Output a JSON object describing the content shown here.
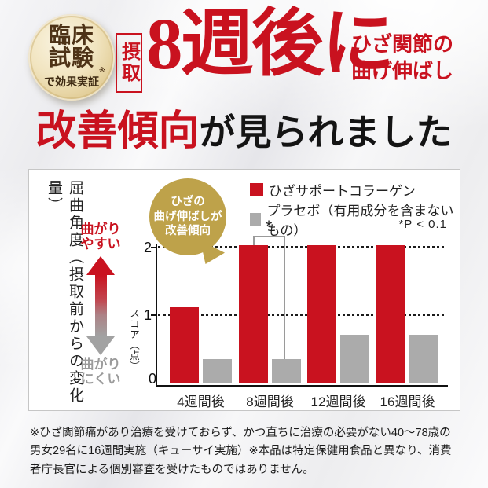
{
  "header": {
    "badge": {
      "title": "臨床試験",
      "note": "※",
      "subtitle": "で効果実証"
    },
    "intake_label": "摂取",
    "headline_large": "8週後に",
    "headline_side_line1": "ひざ関節の",
    "headline_side_line2": "曲げ伸ばし",
    "headline2_red": "改善傾向",
    "headline2_black": "が見られました"
  },
  "chart": {
    "y_axis_title": "屈曲角度（摂取前からの変化量）",
    "bend_easy": "曲がりやすい",
    "bend_hard": "曲がりにくい",
    "score_axis_label": "スコア（点）",
    "y_ticks": [
      "2",
      "1",
      "0"
    ],
    "callout": {
      "line1": "ひざの",
      "line2": "曲げ伸ばしが",
      "line3": "改善傾向"
    },
    "legend": [
      {
        "label": "ひざサポートコラーゲン",
        "color": "#c9121f"
      },
      {
        "label": "プラセボ（有用成分を含まないもの）",
        "color": "#ababab"
      }
    ],
    "p_note": "*P < 0.1",
    "significance_marker": "*"
  },
  "chart_data": {
    "type": "bar",
    "title": "摂取8週後にひざ関節の曲げ伸ばし改善傾向が見られました",
    "categories": [
      "4週間後",
      "8週間後",
      "12週間後",
      "16週間後"
    ],
    "series": [
      {
        "name": "ひざサポートコラーゲン",
        "color": "#c9121f",
        "values": [
          1.1,
          2.0,
          2.0,
          2.0
        ]
      },
      {
        "name": "プラセボ（有用成分を含まないもの）",
        "color": "#ababab",
        "values": [
          0.35,
          0.35,
          0.7,
          0.7
        ]
      }
    ],
    "ylabel": "スコア（点）",
    "ylim": [
      0,
      2.3
    ],
    "dotted_gridlines_at": [
      1,
      2
    ],
    "legend_position": "top-right",
    "significance": {
      "marker": "*",
      "category": "8週間後",
      "note": "*P < 0.1"
    }
  },
  "footnote": "※ひざ関節痛があり治療を受けておらず、かつ直ちに治療の必要がない40～78歳の男女29名に16週間実施（キューサイ実施）※本品は特定保健用食品と異なり、消費者庁長官による個別審査を受けたものではありません。"
}
